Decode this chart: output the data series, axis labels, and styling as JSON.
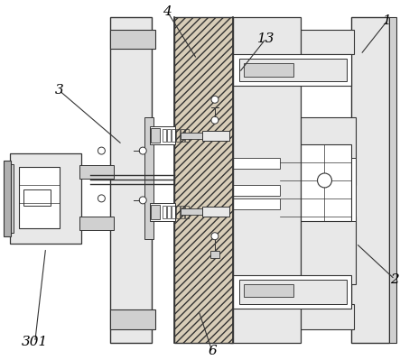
{
  "bg_color": "#ffffff",
  "line_color": "#333333",
  "figsize": [
    4.43,
    3.99
  ],
  "dpi": 100,
  "hatch_fc": "#d8cdb8",
  "light_gray": "#e8e8e8",
  "mid_gray": "#d0d0d0",
  "dark_gray": "#b0b0b0"
}
